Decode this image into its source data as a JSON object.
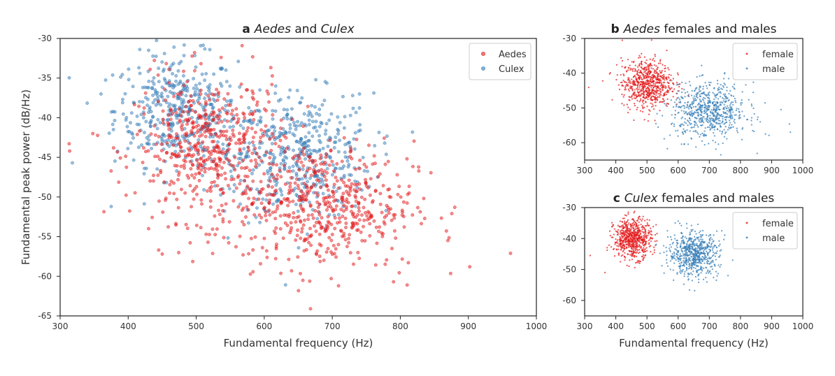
{
  "colors": {
    "red": "#e41a1c",
    "blue": "#377eb8"
  },
  "chart_data": [
    {
      "id": "a",
      "type": "scatter",
      "title": {
        "letter": "a",
        "italic": "Aedes",
        "mid": " and ",
        "italic2": "Culex",
        "rest": ""
      },
      "xlabel": "Fundamental frequency (Hz)",
      "ylabel": "Fundamental peak power (dB/Hz)",
      "xlim": [
        300,
        1000
      ],
      "ylim": [
        -65,
        -30
      ],
      "xticks": [
        "300",
        "400",
        "500",
        "600",
        "700",
        "800",
        "900",
        "1000"
      ],
      "yticks": [
        "-30",
        "-35",
        "-40",
        "-45",
        "-50",
        "-55",
        "-60",
        "-65"
      ],
      "legend_position": "top-right",
      "grid": false,
      "series": [
        {
          "name": "Culex",
          "color": "#377eb8",
          "clusters": [
            {
              "cx": 470,
              "cy": -39,
              "sx": 45,
              "sy": 3.5,
              "n": 380
            },
            {
              "cx": 660,
              "cy": -45,
              "sx": 50,
              "sy": 4,
              "n": 380
            },
            {
              "cx": 560,
              "cy": -44,
              "sx": 40,
              "sy": 3.5,
              "n": 120
            }
          ],
          "points": [
            [
              318,
              -45.7
            ],
            [
              375,
              -51.2
            ],
            [
              430,
              -31.5
            ],
            [
              520,
              -31.4
            ],
            [
              730,
              -37.2
            ],
            [
              740,
              -37.0
            ],
            [
              360,
              -37.0
            ]
          ]
        },
        {
          "name": "Aedes",
          "color": "#e41a1c",
          "clusters": [
            {
              "cx": 520,
              "cy": -44,
              "sx": 55,
              "sy": 4.5,
              "n": 520
            },
            {
              "cx": 690,
              "cy": -51,
              "sx": 65,
              "sy": 4,
              "n": 520
            }
          ],
          "points": [
            [
              314,
              -44.2
            ],
            [
              348,
              -42.0
            ],
            [
              430,
              -54.0
            ],
            [
              668,
              -64.1
            ],
            [
              902,
              -58.8
            ],
            [
              962,
              -57.1
            ],
            [
              880,
              -51.3
            ],
            [
              810,
              -61.1
            ],
            [
              790,
              -60.7
            ],
            [
              870,
              -55.5
            ]
          ]
        }
      ]
    },
    {
      "id": "b",
      "type": "scatter",
      "title": {
        "letter": "b",
        "italic": "Aedes",
        "mid": "",
        "italic2": "",
        "rest": " females and males"
      },
      "xlabel": "",
      "ylabel": "",
      "xlim": [
        300,
        1000
      ],
      "ylim": [
        -65,
        -30
      ],
      "xticks": [
        "300",
        "400",
        "500",
        "600",
        "700",
        "800",
        "900",
        "1000"
      ],
      "yticks": [
        "-30",
        "-40",
        "-50",
        "-60"
      ],
      "legend_position": "top-right",
      "grid": false,
      "series": [
        {
          "name": "female",
          "color": "#e41a1c",
          "clusters": [
            {
              "cx": 500,
              "cy": -43,
              "sx": 40,
              "sy": 3.5,
              "n": 700
            }
          ],
          "points": [
            [
              313,
              -44.1
            ],
            [
              358,
              -42.2
            ],
            [
              380,
              -40.2
            ]
          ]
        },
        {
          "name": "male",
          "color": "#377eb8",
          "clusters": [
            {
              "cx": 700,
              "cy": -51,
              "sx": 60,
              "sy": 4,
              "n": 700
            }
          ],
          "points": [
            [
              960,
              -57.0
            ],
            [
              930,
              -50.5
            ],
            [
              880,
              -57.5
            ]
          ]
        }
      ]
    },
    {
      "id": "c",
      "type": "scatter",
      "title": {
        "letter": "c",
        "italic": "Culex",
        "mid": "",
        "italic2": "",
        "rest": " females and males"
      },
      "xlabel": "Fundamental frequency (Hz)",
      "ylabel": "",
      "xlim": [
        300,
        1000
      ],
      "ylim": [
        -65,
        -30
      ],
      "xticks": [
        "300",
        "400",
        "500",
        "600",
        "700",
        "800",
        "900",
        "1000"
      ],
      "yticks": [
        "-30",
        "-40",
        "-50",
        "-60"
      ],
      "legend_position": "top-right",
      "grid": false,
      "series": [
        {
          "name": "female",
          "color": "#e41a1c",
          "clusters": [
            {
              "cx": 455,
              "cy": -40,
              "sx": 30,
              "sy": 3.2,
              "n": 650
            }
          ],
          "points": [
            [
              318,
              -45.5
            ],
            [
              365,
              -51.0
            ],
            [
              440,
              -31.5
            ]
          ]
        },
        {
          "name": "male",
          "color": "#377eb8",
          "clusters": [
            {
              "cx": 650,
              "cy": -45,
              "sx": 40,
              "sy": 3.5,
              "n": 650
            }
          ],
          "points": [
            [
              760,
              -52.0
            ],
            [
              740,
              -37.5
            ],
            [
              775,
              -47.0
            ]
          ]
        }
      ]
    }
  ]
}
